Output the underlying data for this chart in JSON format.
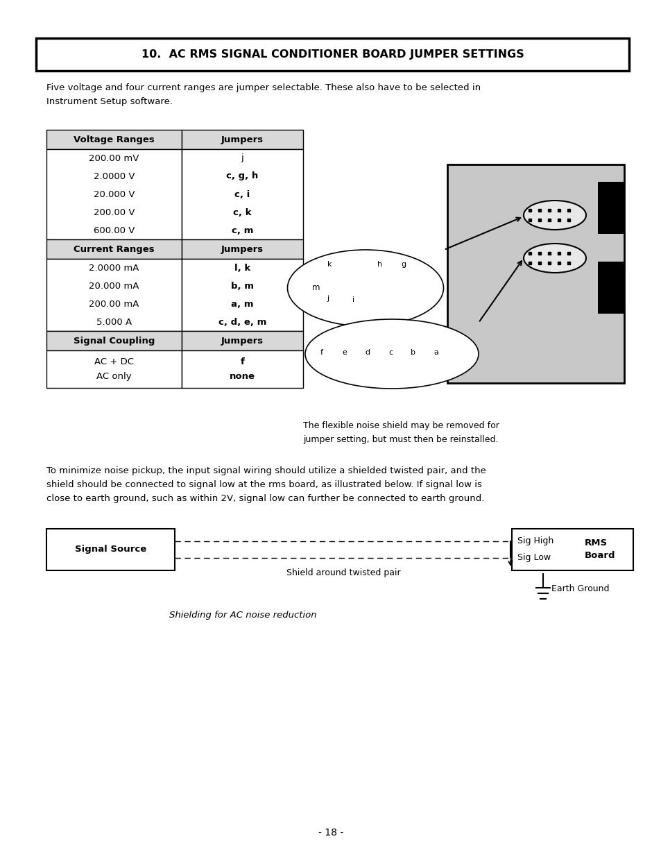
{
  "title": "10.  AC RMS SIGNAL CONDITIONER BOARD JUMPER SETTINGS",
  "intro_text": "Five voltage and four current ranges are jumper selectable. These also have to be selected in\nInstrument Setup software.",
  "voltage_ranges": [
    "200.00 mV",
    "2.0000 V",
    "20.000 V",
    "200.00 V",
    "600.00 V"
  ],
  "voltage_jumpers": [
    "j",
    "c, g, h",
    "c, i",
    "c, k",
    "c, m"
  ],
  "voltage_jumpers_bold": [
    false,
    true,
    true,
    true,
    true
  ],
  "current_ranges": [
    "2.0000 mA",
    "20.000 mA",
    "200.00 mA",
    "5.000 A"
  ],
  "current_jumpers": [
    "l, k",
    "b, m",
    "a, m",
    "c, d, e, m"
  ],
  "coupling_ranges": [
    "AC + DC",
    "AC only"
  ],
  "coupling_jumpers": [
    "f",
    "none"
  ],
  "noise_text": "To minimize noise pickup, the input signal wiring should utilize a shielded twisted pair, and the\nshield should be connected to signal low at the rms board, as illustrated below. If signal low is\nclose to earth ground, such as within 2V, signal low can further be connected to earth ground.",
  "flexible_shield_text": "The flexible noise shield may be removed for\njumper setting, but must then be reinstalled.",
  "caption": "Shielding for AC noise reduction",
  "page_number": "- 18 -",
  "bg_color": "#ffffff",
  "header_bg": "#d8d8d8",
  "upper_jumper_labels": [
    "k",
    "i",
    "h",
    "g"
  ],
  "lower_jumper_labels": [
    "f",
    "e",
    "d",
    "c",
    "b",
    "a"
  ]
}
